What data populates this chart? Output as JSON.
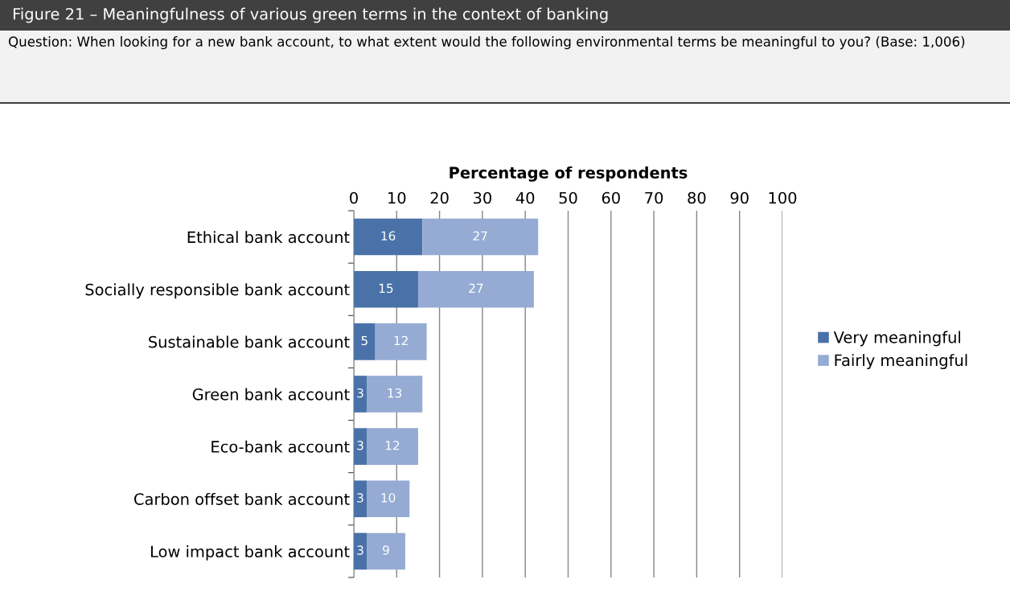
{
  "chart_data": {
    "type": "bar",
    "orientation": "horizontal",
    "stacked": true,
    "title": "Figure 21 – Meaningfulness of various green terms in the context of banking",
    "subtitle": "Question: When looking for a new bank account, to what extent would the following environmental terms be meaningful to you? (Base: 1,006)",
    "xlabel": "Percentage of respondents",
    "categories": [
      "Ethical bank account",
      "Socially responsible bank account",
      "Sustainable bank account",
      "Green bank account",
      "Eco-bank account",
      "Carbon offset bank account",
      "Low impact bank account"
    ],
    "series": [
      {
        "name": "Very meaningful",
        "color": "#4a72a8",
        "values": [
          16,
          15,
          5,
          3,
          3,
          3,
          3
        ]
      },
      {
        "name": "Fairly meaningful",
        "color": "#95abd3",
        "values": [
          27,
          27,
          12,
          13,
          12,
          10,
          9
        ]
      }
    ],
    "xlim": [
      0,
      100
    ],
    "xticks": [
      0,
      10,
      20,
      30,
      40,
      50,
      60,
      70,
      80,
      90,
      100
    ],
    "grid": "x",
    "legend": "right",
    "data_labels": true
  }
}
